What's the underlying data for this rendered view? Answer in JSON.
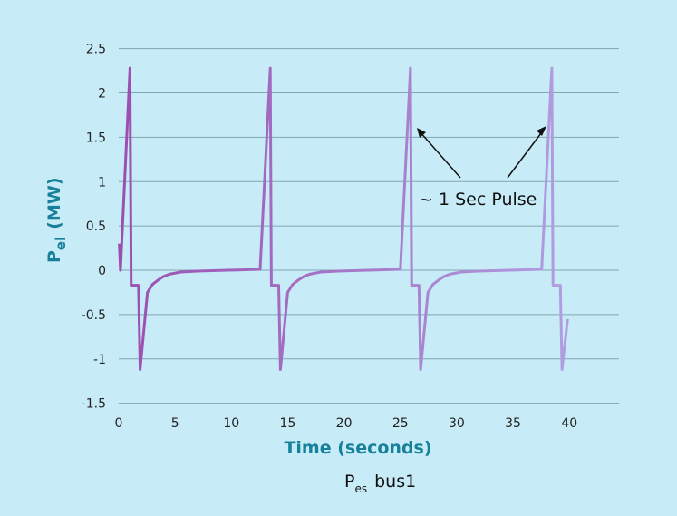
{
  "chart_data": {
    "type": "line",
    "xlabel": "Time (seconds)",
    "ylabel_main": "P",
    "ylabel_sub": "el",
    "ylabel_unit": "(MW)",
    "xlim": [
      0,
      44
    ],
    "ylim": [
      -1.5,
      2.5
    ],
    "xticks": [
      0,
      5,
      10,
      15,
      20,
      25,
      30,
      35,
      40
    ],
    "yticks": [
      2.5,
      2,
      1.5,
      1,
      0.5,
      0,
      -0.5,
      -1,
      -1.5
    ],
    "ytick_labels": [
      "2.5",
      "2",
      "1.5",
      "1",
      "0.5",
      "0",
      "-0.5",
      "-1",
      "-1.5"
    ],
    "grid": "horizontal",
    "legend_position": "bottom",
    "annotation": "~ 1 Sec Pulse",
    "colors": {
      "line_start": "#9b4fb0",
      "line_end": "#b09ee0",
      "axis_title": "#17809a",
      "grid": "#7fa6b3",
      "background": "#c8ecf7"
    },
    "series": [
      {
        "name_main": "P",
        "name_sub": "es",
        "name_suffix": "bus1",
        "points": [
          [
            0.05,
            0.3
          ],
          [
            0.15,
            0.0
          ],
          [
            1.0,
            2.28
          ],
          [
            1.1,
            -0.17
          ],
          [
            1.75,
            -0.17
          ],
          [
            1.9,
            -1.12
          ],
          [
            2.55,
            -0.25
          ],
          [
            3,
            -0.16
          ],
          [
            3.5,
            -0.11
          ],
          [
            4,
            -0.07
          ],
          [
            4.5,
            -0.045
          ],
          [
            5.5,
            -0.02
          ],
          [
            7,
            -0.01
          ],
          [
            12.55,
            0.01
          ],
          [
            13.45,
            2.28
          ],
          [
            13.55,
            -0.17
          ],
          [
            14.2,
            -0.17
          ],
          [
            14.35,
            -1.12
          ],
          [
            15,
            -0.25
          ],
          [
            15.45,
            -0.16
          ],
          [
            15.95,
            -0.11
          ],
          [
            16.45,
            -0.07
          ],
          [
            16.95,
            -0.045
          ],
          [
            17.95,
            -0.02
          ],
          [
            19.45,
            -0.01
          ],
          [
            25,
            0.01
          ],
          [
            25.9,
            2.28
          ],
          [
            26,
            -0.17
          ],
          [
            26.65,
            -0.17
          ],
          [
            26.8,
            -1.12
          ],
          [
            27.45,
            -0.25
          ],
          [
            27.9,
            -0.16
          ],
          [
            28.4,
            -0.11
          ],
          [
            28.9,
            -0.07
          ],
          [
            29.4,
            -0.045
          ],
          [
            30.4,
            -0.02
          ],
          [
            31.9,
            -0.01
          ],
          [
            37.55,
            0.01
          ],
          [
            38.45,
            2.28
          ],
          [
            38.55,
            -0.17
          ],
          [
            39.2,
            -0.17
          ],
          [
            39.35,
            -1.12
          ],
          [
            39.85,
            -0.55
          ]
        ]
      }
    ]
  }
}
